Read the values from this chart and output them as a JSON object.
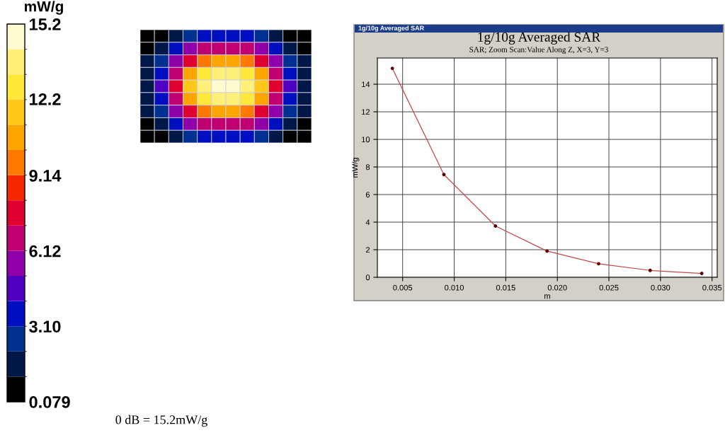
{
  "chart_data": [
    {
      "type": "heatmap",
      "clabel": "mW/g",
      "clim": [
        0.079,
        15.2
      ],
      "cticks": [
        0.079,
        {
          "value": 3.1,
          "label": "3.10"
        },
        6.12,
        9.14,
        12.2,
        15.2
      ],
      "categories": [
        null,
        null,
        null,
        null,
        null,
        null,
        null,
        null,
        null,
        null,
        null,
        null
      ],
      "y_categories": [
        null,
        null,
        null,
        null,
        null,
        null,
        null,
        null,
        null
      ],
      "cells": [
        [
          0.1,
          0.5,
          1.5,
          2.5,
          3.2,
          3.6,
          3.6,
          3.2,
          2.5,
          1.5,
          0.5,
          0.1
        ],
        [
          0.5,
          1.8,
          3.5,
          5.2,
          6.4,
          7.0,
          7.0,
          6.4,
          5.2,
          3.5,
          1.8,
          0.5
        ],
        [
          1.2,
          3.0,
          5.5,
          8.0,
          10.0,
          11.0,
          11.0,
          10.0,
          8.0,
          5.5,
          3.0,
          1.2
        ],
        [
          1.8,
          4.0,
          7.0,
          10.5,
          12.8,
          14.0,
          14.0,
          12.8,
          10.5,
          7.0,
          4.0,
          1.8
        ],
        [
          2.0,
          4.4,
          7.6,
          11.2,
          13.8,
          15.0,
          15.0,
          13.8,
          11.2,
          7.6,
          4.4,
          2.0
        ],
        [
          1.8,
          4.0,
          7.0,
          10.5,
          12.8,
          14.0,
          14.0,
          12.8,
          10.5,
          7.0,
          4.0,
          1.8
        ],
        [
          1.2,
          3.0,
          5.5,
          8.0,
          10.0,
          11.0,
          11.0,
          10.0,
          8.0,
          5.5,
          3.0,
          1.2
        ],
        [
          0.5,
          1.8,
          3.5,
          5.2,
          6.4,
          7.0,
          7.0,
          6.4,
          5.2,
          3.5,
          1.8,
          0.5
        ],
        [
          0.1,
          0.5,
          1.5,
          2.5,
          3.2,
          3.6,
          3.6,
          3.2,
          2.5,
          1.5,
          0.5,
          0.1
        ]
      ],
      "annotations": [
        "0 dB = 15.2mW/g"
      ]
    },
    {
      "type": "line",
      "title": "1g/10g Averaged SAR",
      "subtitle": "SAR; Zoom Scan:Value Along Z, X=3, Y=3",
      "xlabel": "m",
      "ylabel": "mW/g",
      "x": [
        0.004,
        0.009,
        0.014,
        0.019,
        0.024,
        0.029,
        0.034
      ],
      "series": [
        {
          "color": "#c04848",
          "values": [
            15.15,
            7.45,
            3.72,
            1.9,
            0.98,
            0.5,
            0.28
          ]
        }
      ],
      "xlim": [
        0.00255,
        0.0355
      ],
      "xticks": [
        {
          "value": 0.005,
          "label": "0.005"
        },
        {
          "value": 0.01,
          "label": "0.010"
        },
        {
          "value": 0.015,
          "label": "0.015"
        },
        {
          "value": 0.02,
          "label": "0.020"
        },
        {
          "value": 0.025,
          "label": "0.025"
        },
        {
          "value": 0.03,
          "label": "0.030"
        },
        {
          "value": 0.035,
          "label": "0.035"
        }
      ],
      "ylim": [
        0,
        15.9
      ],
      "yticks": [
        0,
        2,
        4,
        6,
        8,
        10,
        12,
        14
      ],
      "grid": true,
      "marker": "circle",
      "line_style": "solid",
      "annotations": [
        "1g/10g Averaged SAR"
      ]
    }
  ]
}
